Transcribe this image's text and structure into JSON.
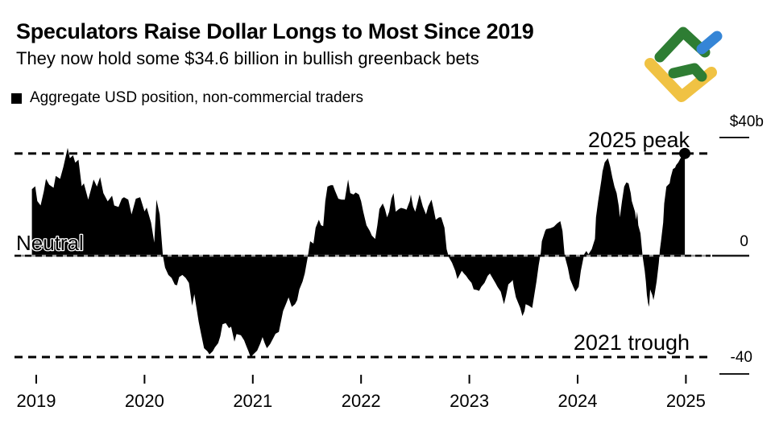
{
  "header": {
    "title": "Speculators Raise Dollar Longs to Most Since 2019",
    "subtitle": "They now hold some $34.6 billion in bullish greenback bets"
  },
  "legend": {
    "label": "Aggregate USD position, non-commercial traders",
    "swatch_color": "#000000"
  },
  "logo": {
    "name": "LiteFinance",
    "green": "#2e7d33",
    "blue": "#3585d6",
    "yellow": "#f0c243"
  },
  "annotations": {
    "peak": {
      "label": "2025 peak",
      "value": 34.6
    },
    "trough": {
      "label": "2021 trough",
      "value": -34.3
    },
    "neutral": {
      "label": "Neutral",
      "value": 0
    }
  },
  "y_axis": {
    "labels": [
      {
        "text": "$40b",
        "value": 40
      },
      {
        "text": "0",
        "value": 0
      },
      {
        "text": "-40",
        "value": -40
      }
    ]
  },
  "x_axis": {
    "labels": [
      "2019",
      "2020",
      "2021",
      "2022",
      "2023",
      "2024",
      "2025"
    ]
  },
  "chart_data": {
    "type": "area",
    "title": "Aggregate USD position, non-commercial traders",
    "x_unit": "year",
    "y_unit": "USD billions",
    "xlim": [
      2018.95,
      2025.3
    ],
    "ylim": [
      -48,
      44
    ],
    "x_ticks": [
      2019,
      2020,
      2021,
      2022,
      2023,
      2024,
      2025
    ],
    "y_ticks": [
      -40,
      0,
      40
    ],
    "grid": false,
    "zero_line": true,
    "reference_lines": [
      {
        "name": "2025 peak",
        "value": 34.6,
        "style": "dashed"
      },
      {
        "name": "neutral",
        "value": 0,
        "style": "dashed"
      },
      {
        "name": "2021 trough",
        "value": -34.3,
        "style": "dashed"
      }
    ],
    "peak_point": {
      "x": 2024.99,
      "y": 34.6
    },
    "series": [
      {
        "name": "Aggregate USD position, non-commercial traders",
        "color": "#000000",
        "points": [
          [
            2018.96,
            22.5
          ],
          [
            2018.99,
            23.5
          ],
          [
            2019.01,
            18.5
          ],
          [
            2019.04,
            17
          ],
          [
            2019.07,
            21.8
          ],
          [
            2019.09,
            26
          ],
          [
            2019.12,
            24
          ],
          [
            2019.16,
            23
          ],
          [
            2019.18,
            27
          ],
          [
            2019.22,
            26
          ],
          [
            2019.25,
            30
          ],
          [
            2019.29,
            36.5
          ],
          [
            2019.31,
            33
          ],
          [
            2019.34,
            34
          ],
          [
            2019.36,
            31.5
          ],
          [
            2019.39,
            32.5
          ],
          [
            2019.42,
            23.5
          ],
          [
            2019.44,
            24.5
          ],
          [
            2019.48,
            19
          ],
          [
            2019.51,
            23
          ],
          [
            2019.53,
            25.8
          ],
          [
            2019.56,
            23.4
          ],
          [
            2019.59,
            26.6
          ],
          [
            2019.62,
            21.2
          ],
          [
            2019.66,
            18.4
          ],
          [
            2019.7,
            20.3
          ],
          [
            2019.72,
            17
          ],
          [
            2019.76,
            16.5
          ],
          [
            2019.79,
            19.3
          ],
          [
            2019.81,
            19.8
          ],
          [
            2019.85,
            19
          ],
          [
            2019.88,
            14
          ],
          [
            2019.92,
            19.3
          ],
          [
            2019.96,
            19.8
          ],
          [
            2020,
            15
          ],
          [
            2020.02,
            16.3
          ],
          [
            2020.06,
            11.2
          ],
          [
            2020.09,
            4.4
          ],
          [
            2020.11,
            19
          ],
          [
            2020.14,
            14
          ],
          [
            2020.17,
            0
          ],
          [
            2020.19,
            -4
          ],
          [
            2020.22,
            -6.5
          ],
          [
            2020.25,
            -7.5
          ],
          [
            2020.28,
            -9.8
          ],
          [
            2020.3,
            -10
          ],
          [
            2020.32,
            -7.2
          ],
          [
            2020.35,
            -6.5
          ],
          [
            2020.38,
            -7.5
          ],
          [
            2020.41,
            -9.2
          ],
          [
            2020.44,
            -16.9
          ],
          [
            2020.46,
            -13
          ],
          [
            2020.5,
            -22.3
          ],
          [
            2020.52,
            -26
          ],
          [
            2020.55,
            -31.3
          ],
          [
            2020.58,
            -32.3
          ],
          [
            2020.6,
            -33.4
          ],
          [
            2020.63,
            -32.3
          ],
          [
            2020.65,
            -31
          ],
          [
            2020.68,
            -29.6
          ],
          [
            2020.7,
            -27.2
          ],
          [
            2020.72,
            -23.2
          ],
          [
            2020.75,
            -22.8
          ],
          [
            2020.78,
            -24.5
          ],
          [
            2020.8,
            -24
          ],
          [
            2020.83,
            -29.1
          ],
          [
            2020.85,
            -26.5
          ],
          [
            2020.89,
            -26.9
          ],
          [
            2020.92,
            -28.6
          ],
          [
            2020.94,
            -30.5
          ],
          [
            2020.96,
            -32.3
          ],
          [
            2020.98,
            -34.3
          ],
          [
            2021.01,
            -33.2
          ],
          [
            2021.04,
            -32.1
          ],
          [
            2021.07,
            -29.6
          ],
          [
            2021.09,
            -27.5
          ],
          [
            2021.11,
            -29.6
          ],
          [
            2021.13,
            -31.3
          ],
          [
            2021.16,
            -29.9
          ],
          [
            2021.18,
            -28.5
          ],
          [
            2021.21,
            -26.4
          ],
          [
            2021.24,
            -25.8
          ],
          [
            2021.26,
            -22.3
          ],
          [
            2021.28,
            -18.7
          ],
          [
            2021.31,
            -16
          ],
          [
            2021.33,
            -14.1
          ],
          [
            2021.36,
            -17.3
          ],
          [
            2021.39,
            -16.4
          ],
          [
            2021.41,
            -15
          ],
          [
            2021.43,
            -11.4
          ],
          [
            2021.46,
            -8.7
          ],
          [
            2021.48,
            -6
          ],
          [
            2021.51,
            0
          ],
          [
            2021.53,
            4.9
          ],
          [
            2021.56,
            4.1
          ],
          [
            2021.58,
            9.5
          ],
          [
            2021.61,
            12.2
          ],
          [
            2021.63,
            10.3
          ],
          [
            2021.65,
            10
          ],
          [
            2021.67,
            18.5
          ],
          [
            2021.69,
            23.4
          ],
          [
            2021.72,
            23.9
          ],
          [
            2021.74,
            23.9
          ],
          [
            2021.76,
            22
          ],
          [
            2021.79,
            19.3
          ],
          [
            2021.82,
            19
          ],
          [
            2021.85,
            19
          ],
          [
            2021.88,
            25.8
          ],
          [
            2021.9,
            21.2
          ],
          [
            2021.93,
            20.7
          ],
          [
            2021.95,
            21.4
          ],
          [
            2021.98,
            20.7
          ],
          [
            2022,
            18.5
          ],
          [
            2022.02,
            14.9
          ],
          [
            2022.05,
            10.3
          ],
          [
            2022.08,
            8.4
          ],
          [
            2022.1,
            6.8
          ],
          [
            2022.13,
            5.7
          ],
          [
            2022.15,
            10.3
          ],
          [
            2022.17,
            15.8
          ],
          [
            2022.2,
            17.7
          ],
          [
            2022.22,
            15.8
          ],
          [
            2022.24,
            13
          ],
          [
            2022.26,
            14.9
          ],
          [
            2022.28,
            19.3
          ],
          [
            2022.3,
            21.2
          ],
          [
            2022.32,
            14.9
          ],
          [
            2022.35,
            15.8
          ],
          [
            2022.37,
            16.2
          ],
          [
            2022.4,
            15.9
          ],
          [
            2022.42,
            15.6
          ],
          [
            2022.45,
            18.5
          ],
          [
            2022.46,
            20.7
          ],
          [
            2022.48,
            16.7
          ],
          [
            2022.5,
            14.9
          ],
          [
            2022.52,
            17.7
          ],
          [
            2022.54,
            20.7
          ],
          [
            2022.57,
            16.7
          ],
          [
            2022.6,
            14
          ],
          [
            2022.62,
            16.7
          ],
          [
            2022.65,
            19
          ],
          [
            2022.67,
            15.8
          ],
          [
            2022.69,
            12.2
          ],
          [
            2022.72,
            13
          ],
          [
            2022.74,
            13
          ],
          [
            2022.77,
            9.5
          ],
          [
            2022.79,
            2.2
          ],
          [
            2022.81,
            -0.5
          ],
          [
            2022.84,
            -2.4
          ],
          [
            2022.87,
            -5.1
          ],
          [
            2022.89,
            -7.9
          ],
          [
            2022.91,
            -6.5
          ],
          [
            2022.93,
            -5.1
          ],
          [
            2022.95,
            -6
          ],
          [
            2022.97,
            -6.8
          ],
          [
            2022.99,
            -7.9
          ],
          [
            2023.02,
            -9.2
          ],
          [
            2023.04,
            -11.4
          ],
          [
            2023.07,
            -11.6
          ],
          [
            2023.09,
            -11.9
          ],
          [
            2023.11,
            -10.5
          ],
          [
            2023.14,
            -9.2
          ],
          [
            2023.17,
            -6.8
          ],
          [
            2023.19,
            -6
          ],
          [
            2023.21,
            -7.3
          ],
          [
            2023.24,
            -9.2
          ],
          [
            2023.26,
            -10.5
          ],
          [
            2023.29,
            -12.2
          ],
          [
            2023.32,
            -16.4
          ],
          [
            2023.34,
            -13.3
          ],
          [
            2023.36,
            -9.7
          ],
          [
            2023.39,
            -8.7
          ],
          [
            2023.4,
            -8.2
          ],
          [
            2023.41,
            -10.5
          ],
          [
            2023.43,
            -14.1
          ],
          [
            2023.47,
            -17.7
          ],
          [
            2023.49,
            -20.4
          ],
          [
            2023.51,
            -18.7
          ],
          [
            2023.52,
            -16.4
          ],
          [
            2023.55,
            -16.9
          ],
          [
            2023.58,
            -17.7
          ],
          [
            2023.6,
            -13.3
          ],
          [
            2023.62,
            -8.7
          ],
          [
            2023.64,
            -3.3
          ],
          [
            2023.66,
            1
          ],
          [
            2023.67,
            4.9
          ],
          [
            2023.7,
            8.4
          ],
          [
            2023.71,
            9
          ],
          [
            2023.75,
            9.3
          ],
          [
            2023.78,
            9.8
          ],
          [
            2023.81,
            10.9
          ],
          [
            2023.84,
            11.7
          ],
          [
            2023.86,
            8.4
          ],
          [
            2023.88,
            0
          ],
          [
            2023.91,
            -4.1
          ],
          [
            2023.93,
            -7.9
          ],
          [
            2023.96,
            -10.5
          ],
          [
            2023.98,
            -12.2
          ],
          [
            2024.01,
            -10.5
          ],
          [
            2024.03,
            -5.1
          ],
          [
            2024.06,
            0.5
          ],
          [
            2024.08,
            1.6
          ],
          [
            2024.1,
            0.5
          ],
          [
            2024.13,
            2.2
          ],
          [
            2024.16,
            5.7
          ],
          [
            2024.17,
            13
          ],
          [
            2024.19,
            18.5
          ],
          [
            2024.22,
            25.8
          ],
          [
            2024.23,
            28.5
          ],
          [
            2024.25,
            31.6
          ],
          [
            2024.28,
            33
          ],
          [
            2024.3,
            30.3
          ],
          [
            2024.32,
            26.6
          ],
          [
            2024.34,
            23.4
          ],
          [
            2024.36,
            21.2
          ],
          [
            2024.38,
            16.7
          ],
          [
            2024.39,
            13
          ],
          [
            2024.41,
            18.5
          ],
          [
            2024.43,
            23.4
          ],
          [
            2024.45,
            24.8
          ],
          [
            2024.47,
            24.5
          ],
          [
            2024.49,
            21.2
          ],
          [
            2024.5,
            18.5
          ],
          [
            2024.53,
            14.9
          ],
          [
            2024.54,
            12.2
          ],
          [
            2024.55,
            14.9
          ],
          [
            2024.56,
            10.3
          ],
          [
            2024.58,
            7.6
          ],
          [
            2024.6,
            0
          ],
          [
            2024.62,
            -5.1
          ],
          [
            2024.63,
            -8.7
          ],
          [
            2024.64,
            -13.3
          ],
          [
            2024.65,
            -16
          ],
          [
            2024.66,
            -17.3
          ],
          [
            2024.67,
            -11.4
          ],
          [
            2024.69,
            -13.3
          ],
          [
            2024.7,
            -15
          ],
          [
            2024.71,
            -13.3
          ],
          [
            2024.73,
            -8.7
          ],
          [
            2024.75,
            -2.4
          ],
          [
            2024.76,
            2
          ],
          [
            2024.77,
            4.9
          ],
          [
            2024.79,
            11.2
          ],
          [
            2024.8,
            17.7
          ],
          [
            2024.82,
            23.4
          ],
          [
            2024.85,
            24.5
          ],
          [
            2024.86,
            26.6
          ],
          [
            2024.88,
            29.3
          ],
          [
            2024.9,
            29.8
          ],
          [
            2024.91,
            30.7
          ],
          [
            2024.93,
            31.6
          ],
          [
            2024.95,
            33
          ],
          [
            2024.97,
            34
          ],
          [
            2024.99,
            34.6
          ]
        ]
      }
    ]
  }
}
